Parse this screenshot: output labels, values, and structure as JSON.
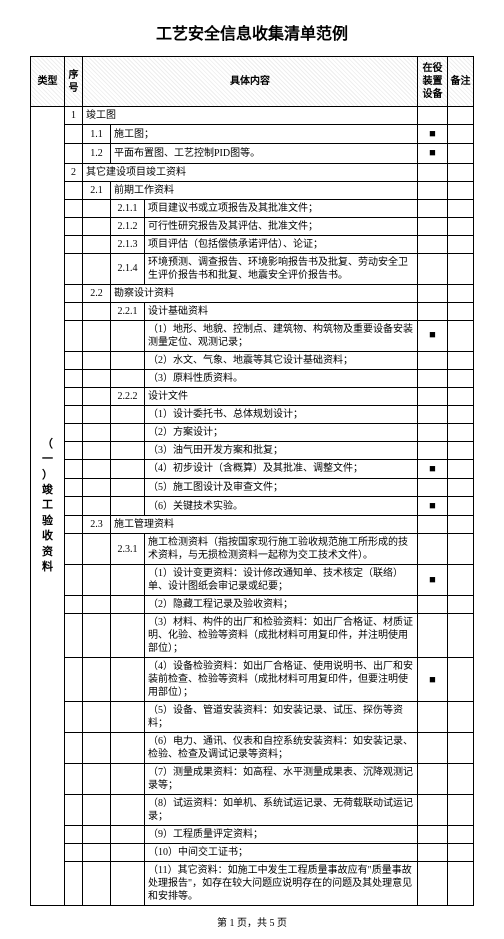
{
  "title": "工艺安全信息收集清单范例",
  "headers": {
    "type": "类型",
    "seq": "序号",
    "content": "具体内容",
    "device": "在役装置设备",
    "note": "备注"
  },
  "category_label": "（一）竣工验收资料",
  "mark_char": "■",
  "rows": [
    {
      "level": 0,
      "seq": "1",
      "text": "竣工图",
      "mark": false
    },
    {
      "level": 1,
      "sub1": "1.1",
      "text": "施工图；",
      "mark": true
    },
    {
      "level": 1,
      "sub1": "1.2",
      "text": "平面布置图、工艺控制PID图等。",
      "mark": true
    },
    {
      "level": 0,
      "seq": "2",
      "text": "其它建设项目竣工资料",
      "mark": false
    },
    {
      "level": 1,
      "sub1": "2.1",
      "text": "前期工作资料",
      "mark": false
    },
    {
      "level": 2,
      "sub2": "2.1.1",
      "text": "项目建议书或立项报告及其批准文件；",
      "mark": false
    },
    {
      "level": 2,
      "sub2": "2.1.2",
      "text": "可行性研究报告及其评估、批准文件；",
      "mark": false
    },
    {
      "level": 2,
      "sub2": "2.1.3",
      "text": "项目评估（包括偿债承诺评估）、论证；",
      "mark": false
    },
    {
      "level": 2,
      "sub2": "2.1.4",
      "text": "环境预测、调查报告、环境影响报告书及批复、劳动安全卫生评价报告书和批复、地震安全评价报告书。",
      "mark": false
    },
    {
      "level": 1,
      "sub1": "2.2",
      "text": "勘察设计资料",
      "mark": false
    },
    {
      "level": 2,
      "sub2": "2.2.1",
      "text": "设计基础资料",
      "mark": false
    },
    {
      "level": 3,
      "text": "（1）地形、地貌、控制点、建筑物、构筑物及重要设备安装测量定位、观测记录；",
      "mark": true
    },
    {
      "level": 3,
      "text": "（2）水文、气象、地震等其它设计基础资料；",
      "mark": false
    },
    {
      "level": 3,
      "text": "（3）原料性质资料。",
      "mark": false
    },
    {
      "level": 2,
      "sub2": "2.2.2",
      "text": "设计文件",
      "mark": false
    },
    {
      "level": 3,
      "text": "（1）设计委托书、总体规划设计；",
      "mark": false
    },
    {
      "level": 3,
      "text": "（2）方案设计；",
      "mark": false
    },
    {
      "level": 3,
      "text": "（3）油气田开发方案和批复；",
      "mark": false
    },
    {
      "level": 3,
      "text": "（4）初步设计（含概算）及其批准、调整文件；",
      "mark": true
    },
    {
      "level": 3,
      "text": "（5）施工图设计及审查文件；",
      "mark": false
    },
    {
      "level": 3,
      "text": "（6）关键技术实验。",
      "mark": true
    },
    {
      "level": 1,
      "sub1": "2.3",
      "text": "施工管理资料",
      "mark": false
    },
    {
      "level": 2,
      "sub2": "2.3.1",
      "text": "施工检测资料（指按国家现行施工验收规范施工所形成的技术资料，与无损检测资料一起称为交工技术文件）。",
      "mark": false
    },
    {
      "level": 3,
      "text": "（1）设计变更资料：设计修改通知单、技术核定（联络）单、设计图纸会审记录或纪要；",
      "mark": true
    },
    {
      "level": 3,
      "text": "（2）隐藏工程记录及验收资料；",
      "mark": false
    },
    {
      "level": 3,
      "text": "（3）材料、构件的出厂和检验资料：如出厂合格证、材质证明、化验、检验等资料（成批材料可用复印件，并注明使用部位）；",
      "mark": false
    },
    {
      "level": 3,
      "text": "（4）设备检验资料：如出厂合格证、使用说明书、出厂和安装前检查、检验等资料（成批材料可用复印件，但要注明使用部位）；",
      "mark": true
    },
    {
      "level": 3,
      "text": "（5）设备、管道安装资料：如安装记录、试压、探伤等资料；",
      "mark": false
    },
    {
      "level": 3,
      "text": "（6）电力、通讯、仪表和自控系统安装资料：如安装记录、检验、检查及调试记录等资料；",
      "mark": false
    },
    {
      "level": 3,
      "text": "（7）测量成果资料：如高程、水平测量成果表、沉降观测记录等；",
      "mark": false
    },
    {
      "level": 3,
      "text": "（8）试运资料：如单机、系统试运记录、无荷载联动试运记录；",
      "mark": false
    },
    {
      "level": 3,
      "text": "（9）工程质量评定资料；",
      "mark": false
    },
    {
      "level": 3,
      "text": "（10）中间交工证书；",
      "mark": false
    },
    {
      "level": 3,
      "text": "（11）其它资料：如施工中发生工程质量事故应有\"质量事故处理报告\"，如存在较大问题应说明存在的问题及其处理意见和安排等。",
      "mark": false
    }
  ],
  "footer": "第 1 页，共 5 页"
}
